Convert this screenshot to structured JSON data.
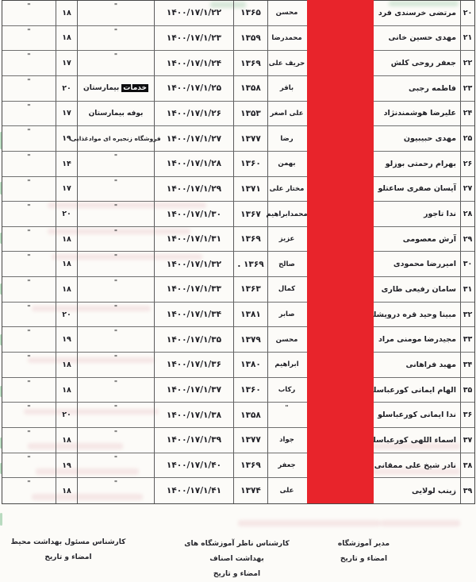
{
  "table": {
    "redaction_color": "#e8242b",
    "ditto_mark": "\"",
    "rows": [
      {
        "no": "۲۰",
        "name": "مرتضی خرسندی فرد",
        "father": "محسن",
        "year": "۱۳۶۵",
        "date": "۱۴۰۰/۱۷/۱/۲۲",
        "occupation": "\"",
        "score": "۱۸",
        "extra": "\""
      },
      {
        "no": "۲۱",
        "name": "مهدی حسین خانی",
        "father": "محمدرضا",
        "year": "۱۳۵۹",
        "date": "۱۴۰۰/۱۷/۱/۲۳",
        "occupation": "\"",
        "score": "۱۸",
        "extra": "\""
      },
      {
        "no": "۲۲",
        "name": "جعفر روحی کلش",
        "father": "حریف علی",
        "year": "۱۳۶۹",
        "date": "۱۴۰۰/۱۷/۱/۲۴",
        "occupation": "\"",
        "score": "۱۷",
        "extra": "\""
      },
      {
        "no": "۲۳",
        "name": "فاطمه رجبی",
        "father": "باقر",
        "year": "۱۳۵۸",
        "date": "۱۴۰۰/۱۷/۱/۲۵",
        "occupation": "بیمارستان",
        "occupation_highlight": "خدمات",
        "score": "۲۰",
        "extra": "\""
      },
      {
        "no": "۲۴",
        "name": "علیرضا هوشمندنژاد",
        "father": "علی اصغر",
        "year": "۱۳۵۳",
        "date": "۱۴۰۰/۱۷/۱/۲۶",
        "occupation": "بوفه بیمارستان",
        "score": "۱۷",
        "extra": "\""
      },
      {
        "no": "۲۵",
        "name": "مهدی حبیبیون",
        "father": "رضا",
        "year": "۱۳۷۷",
        "date": "۱۴۰۰/۱۷/۱/۲۷",
        "occupation": "فروشگاه زنجیره ای موادغذایی",
        "score": "۱۹",
        "extra": "\""
      },
      {
        "no": "۲۶",
        "name": "بهرام رحمتی بوزلو",
        "father": "بهمن",
        "year": "۱۳۶۰",
        "date": "۱۴۰۰/۱۷/۱/۲۸",
        "occupation": "\"",
        "score": "۱۴",
        "extra": "\""
      },
      {
        "no": "۲۷",
        "name": "آیسان صفری ساعتلو",
        "father": "مختار علی",
        "year": "۱۳۷۱",
        "date": "۱۴۰۰/۱۷/۱/۲۹",
        "occupation": "\"",
        "score": "۱۷",
        "extra": "\""
      },
      {
        "no": "۲۸",
        "name": "ندا تاجور",
        "father": "محمدابراهیم",
        "year": "۱۳۶۷",
        "date": "۱۴۰۰/۱۷/۱/۳۰",
        "occupation": "\"",
        "score": "۲۰",
        "extra": "\""
      },
      {
        "no": "۲۹",
        "name": "آرش معصومی",
        "father": "عزیز",
        "year": "۱۳۶۹",
        "date": "۱۴۰۰/۱۷/۱/۳۱",
        "occupation": "\"",
        "score": "۱۸",
        "extra": "\""
      },
      {
        "no": "۳۰",
        "name": "امیررضا محمودی",
        "father": "صالح",
        "year": ". ۱۳۶۹",
        "date": "۱۴۰۰/۱۷/۱/۳۲",
        "occupation": "\"",
        "score": "۱۸",
        "extra": "\""
      },
      {
        "no": "۳۱",
        "name": "سامان رفیعی طاری",
        "father": "کمال",
        "year": "۱۳۶۳",
        "date": "۱۴۰۰/۱۷/۱/۳۳",
        "occupation": "\"",
        "score": "۱۸",
        "extra": "\""
      },
      {
        "no": "۳۲",
        "name": "مبینا وحید قره درویشلو",
        "father": "صابر",
        "year": "۱۳۸۱",
        "date": "۱۴۰۰/۱۷/۱/۳۴",
        "occupation": "\"",
        "score": "۲۰",
        "extra": "\""
      },
      {
        "no": "۳۳",
        "name": "مجیدرضا مومنی مراد",
        "father": "محسن",
        "year": "۱۳۷۹",
        "date": "۱۴۰۰/۱۷/۱/۳۵",
        "occupation": "\"",
        "score": "۱۹",
        "extra": "\""
      },
      {
        "no": "۳۴",
        "name": "مهبد فراهانی",
        "father": "ابراهیم",
        "year": "۱۳۸۰",
        "date": "۱۴۰۰/۱۷/۱/۳۶",
        "occupation": "\"",
        "score": "۱۸",
        "extra": "\""
      },
      {
        "no": "۳۵",
        "name": "الهام ایمانی کورعباسلو",
        "father": "رکاب",
        "year": "۱۳۶۰",
        "date": "۱۴۰۰/۱۷/۱/۳۷",
        "occupation": "\"",
        "score": "۱۸",
        "extra": "\""
      },
      {
        "no": "۳۶",
        "name": "ندا ایمانی کورعباسلو",
        "father": "\"",
        "year": "۱۳۵۸",
        "date": "۱۴۰۰/۱۷/۱/۳۸",
        "occupation": "\"",
        "score": "۲۰",
        "extra": "\""
      },
      {
        "no": "۳۷",
        "name": "اسماء اللهی کورعباسلو",
        "father": "جواد",
        "year": "۱۳۷۷",
        "date": "۱۴۰۰/۱۷/۱/۳۹",
        "occupation": "\"",
        "score": "۱۸",
        "extra": "\""
      },
      {
        "no": "۳۸",
        "name": "نادر شیخ علی ممقانی",
        "father": "جعفر",
        "year": "۱۳۶۹",
        "date": "۱۴۰۰/۱۷/۱/۴۰",
        "occupation": "\"",
        "score": "۱۹",
        "extra": "\""
      },
      {
        "no": "۳۹",
        "name": "زینب لولایی",
        "father": "علی",
        "year": "۱۳۷۴",
        "date": "۱۴۰۰/۱۷/۱/۴۱",
        "occupation": "\"",
        "score": "۱۸",
        "extra": "\""
      }
    ]
  },
  "signatures": {
    "right": {
      "line1": "مدیر آموزشگاه",
      "line2": "امضاء و تاریخ"
    },
    "center": {
      "line1": "کارشناس ناظر آموزشگاه های بهداشت اصناف",
      "line2": "امضاء و تاریخ"
    },
    "left": {
      "line1": "کارشناس مسئول بهداشت محیط",
      "line2": "امضاء و تاریخ"
    }
  }
}
